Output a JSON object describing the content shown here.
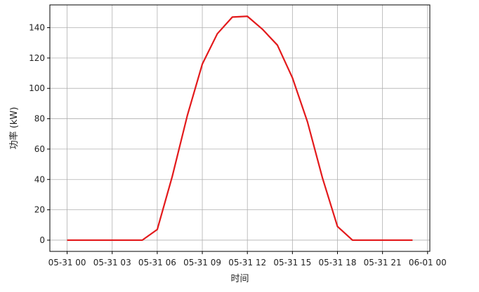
{
  "chart_data": {
    "type": "line",
    "title": "",
    "xlabel": "时间",
    "ylabel": "功率 (kW)",
    "x_unit": "hour of day (05-31 00:00 to 06-01 00:00)",
    "xlim": [
      -1.15,
      24.15
    ],
    "ylim": [
      -7.4,
      155
    ],
    "grid": true,
    "x_ticks": [
      0,
      3,
      6,
      9,
      12,
      15,
      18,
      21,
      24
    ],
    "x_tick_labels": [
      "05-31 00",
      "05-31 03",
      "05-31 06",
      "05-31 09",
      "05-31 12",
      "05-31 15",
      "05-31 18",
      "05-31 21",
      "06-01 00"
    ],
    "y_ticks": [
      0,
      20,
      40,
      60,
      80,
      100,
      120,
      140
    ],
    "y_tick_labels": [
      "0",
      "20",
      "40",
      "60",
      "80",
      "100",
      "120",
      "140"
    ],
    "series": [
      {
        "color": "#e31a1c",
        "x": [
          0,
          1,
          2,
          3,
          4,
          5,
          6,
          7,
          8,
          9,
          10,
          11,
          12,
          13,
          14,
          15,
          16,
          17,
          18,
          19,
          20,
          21,
          22,
          23
        ],
        "y": [
          0,
          0,
          0,
          0,
          0,
          0,
          7,
          42,
          82,
          116,
          136,
          147,
          147.5,
          139,
          128.5,
          107,
          78,
          41,
          9,
          0,
          0,
          0,
          0,
          0
        ]
      }
    ]
  }
}
